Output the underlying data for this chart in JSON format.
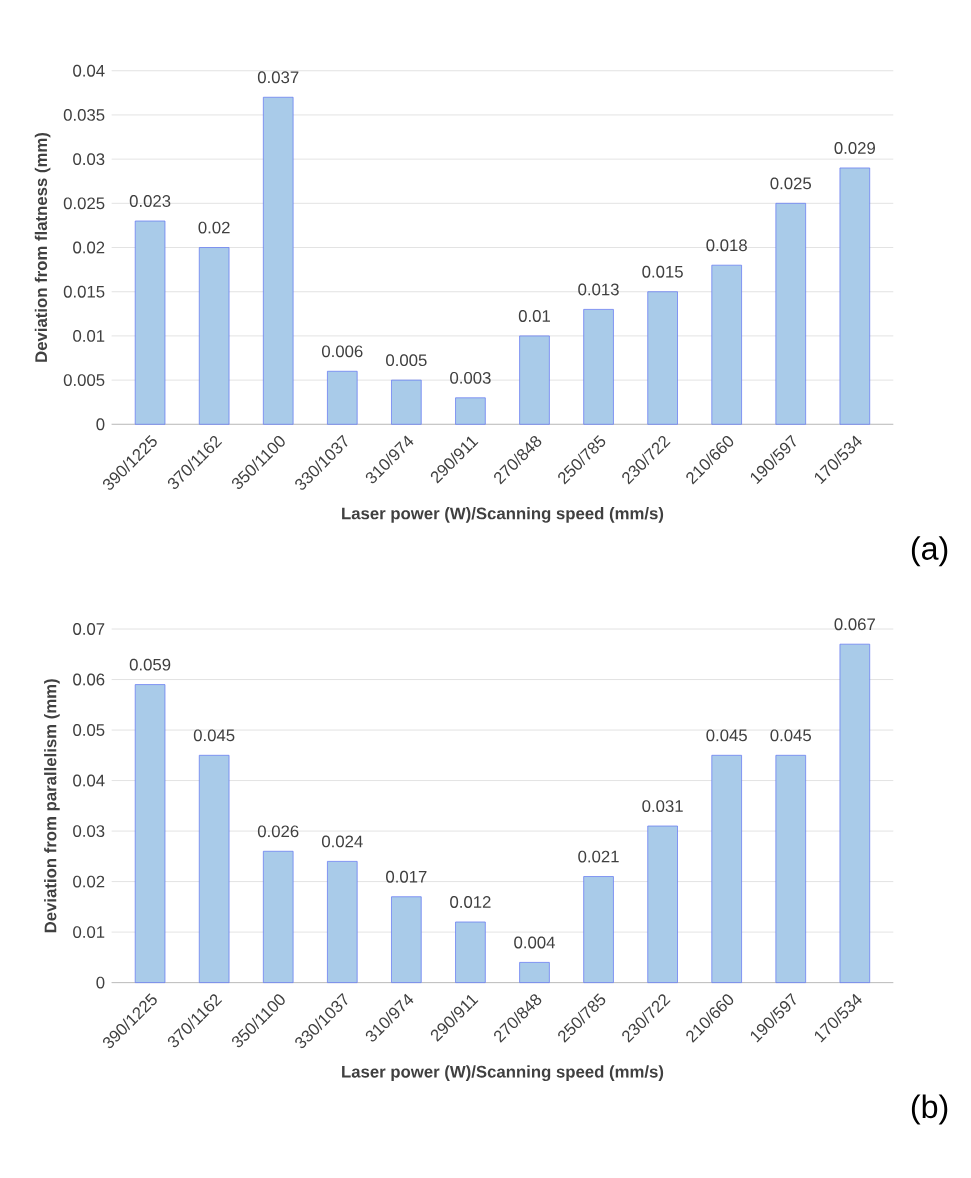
{
  "chart_data": [
    {
      "type": "bar",
      "categories": [
        "390/1225",
        "370/1162",
        "350/1100",
        "330/1037",
        "310/974",
        "290/911",
        "270/848",
        "250/785",
        "230/722",
        "210/660",
        "190/597",
        "170/534"
      ],
      "values": [
        0.023,
        0.02,
        0.037,
        0.006,
        0.005,
        0.003,
        0.01,
        0.013,
        0.015,
        0.018,
        0.025,
        0.029
      ],
      "color": "#a9cbe9",
      "data_labels": true,
      "ylim": [
        0,
        0.04
      ],
      "yticks": [
        0,
        0.005,
        0.01,
        0.015,
        0.02,
        0.025,
        0.03,
        0.035,
        0.04
      ],
      "grid": "y",
      "xlabel": "Laser power (W)/Scanning speed (mm/s)",
      "ylabel": "Deviation from flatness (mm)",
      "annotations": [
        "(a)"
      ]
    },
    {
      "type": "bar",
      "categories": [
        "390/1225",
        "370/1162",
        "350/1100",
        "330/1037",
        "310/974",
        "290/911",
        "270/848",
        "250/785",
        "230/722",
        "210/660",
        "190/597",
        "170/534"
      ],
      "values": [
        0.059,
        0.045,
        0.026,
        0.024,
        0.017,
        0.012,
        0.004,
        0.021,
        0.031,
        0.045,
        0.045,
        0.067
      ],
      "color": "#a9cbe9",
      "data_labels": true,
      "ylim": [
        0,
        0.07
      ],
      "yticks": [
        0,
        0.01,
        0.02,
        0.03,
        0.04,
        0.05,
        0.06,
        0.07
      ],
      "grid": "y",
      "xlabel": "Laser power (W)/Scanning speed (mm/s)",
      "ylabel": "Deviation from parallelism (mm)",
      "annotations": [
        "(b)"
      ]
    }
  ]
}
